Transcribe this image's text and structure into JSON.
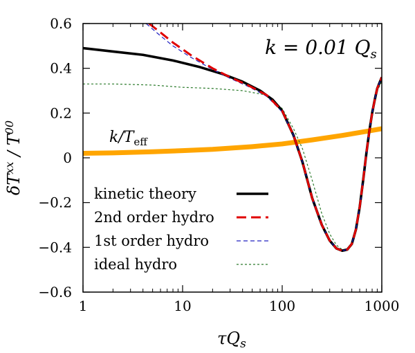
{
  "chart_data": {
    "type": "line",
    "xscale": "log",
    "xlim": [
      1,
      1000
    ],
    "ylim": [
      -0.6,
      0.6
    ],
    "xlabel": "τQ_s",
    "ylabel": "δT^xx / T^00",
    "xticks": [
      1,
      10,
      100,
      1000
    ],
    "xtick_labels": [
      "1",
      "10",
      "100",
      "1000"
    ],
    "yticks": [
      -0.6,
      -0.4,
      -0.2,
      0,
      0.2,
      0.4,
      0.6
    ],
    "ytick_labels": [
      "−0.6",
      "−0.4",
      "−0.2",
      "0",
      "0.2",
      "0.4",
      "0.6"
    ],
    "annotations": [
      "k = 0.01 Q_s",
      "k/T_eff"
    ],
    "legend_position": "bottom-left",
    "series": [
      {
        "name": "kinetic theory",
        "color": "#000000",
        "style": "solid",
        "x": [
          1,
          2,
          4,
          8,
          15,
          25,
          40,
          60,
          80,
          100,
          130,
          160,
          200,
          250,
          300,
          350,
          400,
          450,
          500,
          550,
          600,
          650,
          700,
          750,
          800,
          850,
          900,
          1000
        ],
        "y": [
          0.49,
          0.475,
          0.46,
          0.435,
          0.405,
          0.375,
          0.34,
          0.3,
          0.26,
          0.21,
          0.1,
          -0.02,
          -0.18,
          -0.3,
          -0.37,
          -0.405,
          -0.415,
          -0.41,
          -0.385,
          -0.32,
          -0.22,
          -0.1,
          0.02,
          0.12,
          0.2,
          0.26,
          0.31,
          0.36
        ]
      },
      {
        "name": "2nd order hydro",
        "color": "#e00000",
        "style": "dashed",
        "x": [
          4.6,
          6,
          8,
          12,
          20,
          30,
          45,
          70,
          100,
          130,
          160,
          200,
          250,
          300,
          350,
          400,
          450,
          500,
          550,
          600,
          650,
          700,
          750,
          800,
          850,
          900,
          1000
        ],
        "y": [
          0.6,
          0.56,
          0.515,
          0.46,
          0.4,
          0.36,
          0.325,
          0.28,
          0.21,
          0.1,
          -0.02,
          -0.18,
          -0.3,
          -0.37,
          -0.405,
          -0.415,
          -0.41,
          -0.385,
          -0.32,
          -0.22,
          -0.1,
          0.02,
          0.12,
          0.2,
          0.26,
          0.31,
          0.36
        ]
      },
      {
        "name": "1st order hydro",
        "color": "#2020c0",
        "style": "dashed-thin",
        "x": [
          4.3,
          6,
          8,
          12,
          20,
          30,
          45,
          70,
          100,
          130,
          160,
          200,
          250,
          300,
          350,
          400,
          450,
          500,
          550,
          600,
          650,
          700,
          750,
          800,
          850,
          900,
          1000
        ],
        "y": [
          0.6,
          0.545,
          0.5,
          0.45,
          0.395,
          0.355,
          0.32,
          0.275,
          0.205,
          0.1,
          -0.02,
          -0.18,
          -0.3,
          -0.37,
          -0.405,
          -0.415,
          -0.41,
          -0.385,
          -0.32,
          -0.22,
          -0.1,
          0.02,
          0.12,
          0.2,
          0.26,
          0.31,
          0.36
        ]
      },
      {
        "name": "ideal hydro",
        "color": "#2a7a2a",
        "style": "dotted",
        "x": [
          1,
          2,
          5,
          10,
          20,
          40,
          70,
          100,
          130,
          160,
          200,
          250,
          300,
          350,
          400,
          450,
          500,
          550,
          600,
          650,
          700,
          750,
          800,
          850,
          900,
          1000
        ],
        "y": [
          0.33,
          0.33,
          0.325,
          0.315,
          0.31,
          0.3,
          0.28,
          0.22,
          0.13,
          0.04,
          -0.1,
          -0.25,
          -0.34,
          -0.39,
          -0.41,
          -0.41,
          -0.39,
          -0.33,
          -0.23,
          -0.11,
          0.01,
          0.11,
          0.19,
          0.25,
          0.3,
          0.34
        ]
      },
      {
        "name": "k/T_eff",
        "color": "#ffa500",
        "style": "thick",
        "x": [
          1,
          2,
          5,
          10,
          20,
          50,
          100,
          200,
          400,
          700,
          1000
        ],
        "y": [
          0.02,
          0.022,
          0.027,
          0.032,
          0.038,
          0.05,
          0.062,
          0.08,
          0.1,
          0.118,
          0.13
        ]
      }
    ]
  }
}
